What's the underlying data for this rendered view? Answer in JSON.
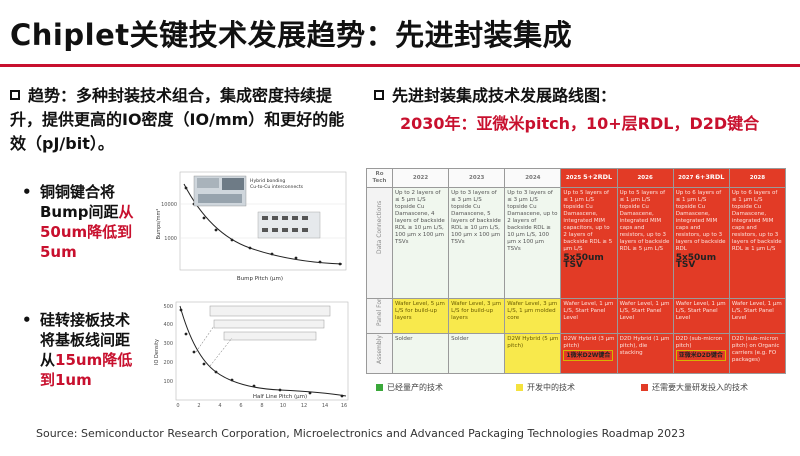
{
  "title": "Chiplet关键技术发展趋势：先进封装集成",
  "left": {
    "trend": "趋势：多种封装技术组合，集成密度持续提升，提供更高的IO密度（IO/mm）和更好的能效（pJ/bit）。",
    "item1": {
      "prefix": "铜铜键合将Bump间距",
      "highlight": "从50um降低到5um"
    },
    "item2": {
      "prefix": "硅转接板技术将基板线间距从",
      "highlight": "15um降低到1um"
    },
    "chart1": {
      "legend": "Hybrid bonding Cu-to-Cu interconnects",
      "xlabel": "Bump Pitch (µm)",
      "ylabel": "Bumps/mm²",
      "y_ticks": [
        "10000",
        "1000"
      ]
    },
    "chart2": {
      "xlabel": "Half Line Pitch (µm)",
      "ylabel": "IO Density",
      "x_ticks": [
        "0",
        "2",
        "4",
        "6",
        "8",
        "10",
        "12",
        "14",
        "16"
      ],
      "y_ticks": [
        "500",
        "400",
        "300",
        "200",
        "100"
      ]
    }
  },
  "right": {
    "title": "先进封装集成技术发展路线图：",
    "subtitle": "2030年：亚微米pitch，10+层RDL，D2D键合",
    "roadmap": {
      "corner": "Ro\nTech",
      "years": [
        "2022",
        "2023",
        "2024",
        "2025",
        "2026",
        "2027",
        "2028"
      ],
      "year_notes": {
        "3": "5+2RDL",
        "5": "6+3RDL"
      },
      "rows": [
        {
          "label": "Data Connections",
          "cells": [
            "Up to 2 layers of ≤ 5 µm L/S topside Cu Damascene, 4 layers of backside RDL ≥ 10 µm L/S, 100 µm x 100 µm TSVs",
            "Up to 3 layers of ≤ 3 µm L/S topside Cu Damascene, 5 layers of backside RDL ≥ 10 µm L/S, 100 µm x 100 µm TSVs",
            "Up to 3 layers of ≤ 3 µm L/S topside Cu Damascene, up to 2 layers of backside RDL ≥ 10 µm L/S, 100 µm x 100 µm TSVs",
            "Up to 5 layers of ≤ 1 µm L/S topside Cu Damascene, integrated MIM capacitors, up to 2 layers of backside RDL ≥ 5 µm L/S",
            "Up to 5 layers of ≤ 1 µm L/S topside Cu Damascene, integrated MIM caps and resistors, up to 3 layers of backside RDL ≥ 5 µm L/S",
            "Up to 6 layers of ≤ 1 µm L/S topside Cu Damascene, integrated MIM caps and resistors, up to 3 layers of backside RDL",
            "Up to 6 layers of ≤ 1 µm L/S topside Cu Damascene, integrated MIM caps and resistors, up to 3 layers of backside RDL ≥ 1 µm L/S"
          ],
          "tsv": {
            "3": "5x50um TSV",
            "5": "5x50um TSV"
          }
        },
        {
          "label": "Panel Format",
          "cells": [
            "Wafer Level, 5 µm L/S for build-up layers",
            "Wafer Level, 3 µm L/S for build-up layers",
            "Wafer Level, 3 µm L/S, 1 µm molded core",
            "Wafer Level, 1 µm L/S, Start Panel Level",
            "Wafer Level, 1 µm L/S, Start Panel Level",
            "Wafer Level, 1 µm L/S, Start Panel Level",
            "Wafer Level, 1 µm L/S, Start Panel Level"
          ]
        },
        {
          "label": "Assembly",
          "cells": [
            "Solder",
            "Solder",
            "D2W Hybrid (5 µm pitch)",
            "D2W Hybrid (3 µm pitch)",
            "D2D Hybrid (1 µm pitch), die stacking",
            "D2D (sub-micron pitch)",
            "D2D (sub-micron pitch) on Organic carriers (e.g. FO packages)"
          ],
          "notes": {
            "3": "1微米D2W键合",
            "5": "亚微米D2D键合"
          }
        }
      ]
    },
    "legend": [
      {
        "label": "已经量产的技术",
        "color": "#3aa83a"
      },
      {
        "label": "开发中的技术",
        "color": "#f4e23e"
      },
      {
        "label": "还需要大量研发投入的技术",
        "color": "#e23b26"
      }
    ]
  },
  "source": "Source: Semiconductor Research Corporation, Microelectronics and Advanced Packaging Technologies Roadmap 2023"
}
